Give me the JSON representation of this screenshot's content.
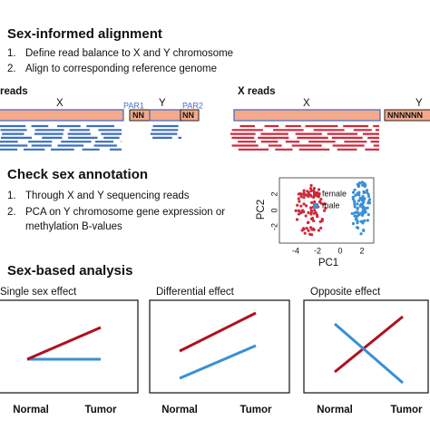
{
  "section1": {
    "title": "Sex-informed alignment",
    "items": [
      "1.",
      "2."
    ],
    "texts": [
      "Define read balance to X and Y chromosome",
      "Align to corresponding reference genome"
    ],
    "left": {
      "label": "reads",
      "x": "X",
      "y": "Y",
      "par1": "PAR1",
      "par2": "PAR2",
      "nn1": "NN",
      "nn2": "NN"
    },
    "right": {
      "label": "X reads",
      "x": "X",
      "y": "Y",
      "nn": "NNNNNN"
    }
  },
  "section2": {
    "title": "Check sex annotation",
    "items": [
      "1.",
      "2."
    ],
    "texts": [
      "Through X and Y sequencing reads",
      "PCA on Y chromosome gene expression or",
      "methylation B-values"
    ],
    "pca": {
      "x_label": "PC1",
      "y_label": "PC2",
      "xticks": [
        "-4",
        "-2",
        "0",
        "2"
      ],
      "yticks": [
        "-2",
        "0",
        "2"
      ],
      "legend": [
        "female",
        "male"
      ]
    }
  },
  "section3": {
    "title": "Sex-based analysis",
    "panels": [
      {
        "title": "Single sex effect",
        "x_labels": [
          "Normal",
          "Tumor"
        ]
      },
      {
        "title": "Differential effect",
        "x_labels": [
          "Normal",
          "Tumor"
        ]
      },
      {
        "title": "Opposite effect",
        "x_labels": [
          "Normal",
          "Tumor"
        ]
      }
    ]
  }
}
